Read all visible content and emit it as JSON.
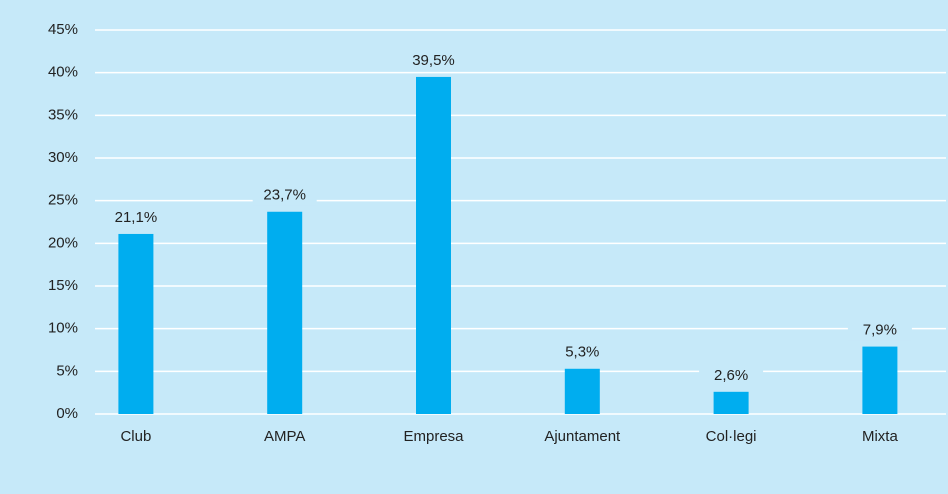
{
  "chart_data": {
    "type": "bar",
    "categories": [
      "Club",
      "AMPA",
      "Empresa",
      "Ajuntament",
      "Col·legi",
      "Mixta"
    ],
    "values": [
      21.1,
      23.7,
      39.5,
      5.3,
      2.6,
      7.9
    ],
    "value_labels": [
      "21,1%",
      "23,7%",
      "39,5%",
      "5,3%",
      "2,6%",
      "7,9%"
    ],
    "color": "#00adef",
    "ylim": [
      0,
      45
    ],
    "yticks": [
      {
        "value": 0,
        "label": "0%"
      },
      {
        "value": 5,
        "label": "5%"
      },
      {
        "value": 10,
        "label": "10%"
      },
      {
        "value": 15,
        "label": "15%"
      },
      {
        "value": 20,
        "label": "20%"
      },
      {
        "value": 25,
        "label": "25%"
      },
      {
        "value": 30,
        "label": "30%"
      },
      {
        "value": 35,
        "label": "35%"
      },
      {
        "value": 40,
        "label": "40%"
      },
      {
        "value": 45,
        "label": "45%"
      }
    ],
    "grid": true
  }
}
